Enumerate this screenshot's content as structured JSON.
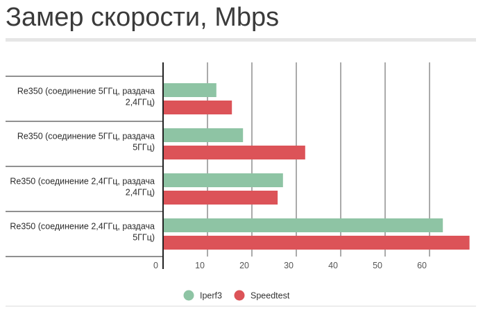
{
  "page": {
    "title": "Замер скорости, Mbps"
  },
  "colors": {
    "iperf3": "#8ec4a4",
    "speedtest": "#dc5358",
    "grid": "#555555",
    "axis": "#222222"
  },
  "chart_data": {
    "type": "bar",
    "orientation": "horizontal",
    "title": "Замер скорости, Mbps",
    "xlabel": "",
    "ylabel": "",
    "categories": [
      [
        "Re350 (соединение 5ГГц, раздача",
        "2,4ГГц)"
      ],
      [
        "Re350 (соединение 5ГГц, раздача",
        "5ГГц)"
      ],
      [
        "Re350 (соединение 2,4ГГц, раздача",
        "2,4ГГц)"
      ],
      [
        "Re350 (соединение 2,4ГГц, раздача",
        "5ГГц)"
      ]
    ],
    "series": [
      {
        "name": "Iperf3",
        "color": "#8ec4a4",
        "values": [
          12,
          18,
          27,
          63
        ]
      },
      {
        "name": "Speedtest",
        "color": "#dc5358",
        "values": [
          15.5,
          32,
          25.8,
          69
        ]
      }
    ],
    "xlim": [
      0,
      70
    ],
    "xticks": [
      0,
      10,
      20,
      30,
      40,
      50,
      60
    ],
    "grid": true,
    "legend_position": "bottom"
  }
}
